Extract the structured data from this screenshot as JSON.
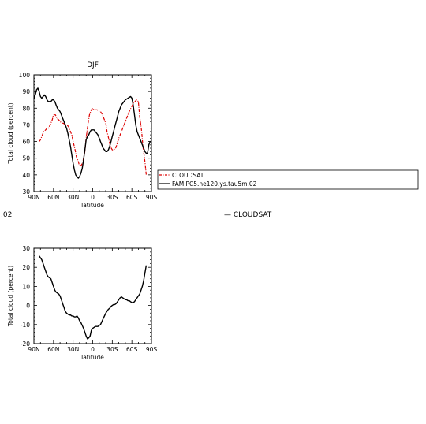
{
  "chart_data": [
    {
      "type": "line",
      "title": "DJF",
      "xlabel": "latitude",
      "ylabel": "Total cloud (percent)",
      "xlim": [
        -90,
        90
      ],
      "ylim": [
        30,
        100
      ],
      "xticks": [
        -90,
        -60,
        -30,
        0,
        30,
        60,
        90
      ],
      "xtick_labels": [
        "90N",
        "60N",
        "30N",
        "0",
        "30S",
        "60S",
        "90S"
      ],
      "yticks": [
        30,
        40,
        50,
        60,
        70,
        80,
        90,
        100
      ],
      "ytick_labels": [
        "30",
        "40",
        "50",
        "60",
        "70",
        "80",
        "90",
        "100"
      ],
      "legend": {
        "placement": "right",
        "entries": [
          "CLOUDSAT",
          "FAMIPC5.ne120.ys.tau5m.02"
        ]
      },
      "series": [
        {
          "name": "CLOUDSAT",
          "color": "#dd0000",
          "style": "dashed-dot",
          "x": [
            -82,
            -80,
            -78,
            -75,
            -72,
            -70,
            -68,
            -65,
            -62,
            -60,
            -57,
            -55,
            -52,
            -50,
            -47,
            -45,
            -42,
            -40,
            -37,
            -35,
            -32,
            -30,
            -27,
            -25,
            -22,
            -20,
            -17,
            -15,
            -12,
            -10,
            -7,
            -5,
            -2,
            0,
            2,
            5,
            7,
            10,
            12,
            15,
            17,
            20,
            22,
            25,
            27,
            30,
            32,
            35,
            37,
            40,
            42,
            45,
            47,
            50,
            52,
            55,
            57,
            60,
            62,
            65,
            67,
            70,
            72,
            75,
            77,
            80,
            82
          ],
          "y": [
            60,
            61,
            63,
            66,
            67,
            68,
            68,
            70,
            73,
            76,
            76,
            74,
            73,
            72,
            71,
            71,
            70,
            70,
            69,
            67,
            64,
            60,
            55,
            51,
            48,
            45,
            46,
            48,
            54,
            62,
            71,
            76,
            79,
            80,
            79,
            79,
            79,
            78,
            78,
            76,
            74,
            71,
            66,
            61,
            57,
            55,
            55,
            56,
            58,
            62,
            64,
            67,
            69,
            72,
            74,
            77,
            79,
            81,
            83,
            84,
            85,
            84,
            75,
            66,
            57,
            48,
            40
          ]
        },
        {
          "name": "FAMIPC5.ne120.ys.tau5m.02",
          "color": "#000000",
          "style": "solid",
          "x": [
            -90,
            -88,
            -86,
            -84,
            -82,
            -80,
            -78,
            -76,
            -74,
            -72,
            -70,
            -68,
            -66,
            -64,
            -62,
            -60,
            -58,
            -56,
            -54,
            -52,
            -50,
            -48,
            -46,
            -44,
            -42,
            -40,
            -38,
            -36,
            -34,
            -32,
            -30,
            -28,
            -26,
            -24,
            -22,
            -20,
            -18,
            -16,
            -14,
            -12,
            -10,
            -8,
            -6,
            -4,
            -2,
            0,
            2,
            4,
            6,
            8,
            10,
            12,
            14,
            16,
            18,
            20,
            22,
            24,
            26,
            28,
            30,
            32,
            34,
            36,
            38,
            40,
            42,
            44,
            46,
            48,
            50,
            52,
            54,
            56,
            58,
            60,
            62,
            64,
            66,
            68,
            70,
            72,
            74,
            76,
            78,
            80,
            82,
            84,
            86,
            88,
            90
          ],
          "y": [
            86,
            88,
            91,
            92,
            90,
            87,
            86,
            87,
            88,
            87,
            85,
            84,
            84,
            84,
            85,
            85,
            84,
            82,
            80,
            79,
            78,
            76,
            74,
            72,
            70,
            68,
            65,
            61,
            57,
            52,
            47,
            43,
            40,
            39,
            38,
            39,
            41,
            44,
            49,
            55,
            61,
            63,
            64,
            66,
            67,
            67,
            67,
            66,
            65,
            64,
            62,
            60,
            58,
            56,
            55,
            54,
            54,
            55,
            57,
            60,
            63,
            66,
            69,
            72,
            75,
            78,
            80,
            82,
            83,
            84,
            85,
            85.5,
            86,
            86.5,
            87,
            86,
            82,
            76,
            70,
            66,
            64,
            62,
            60,
            58,
            56,
            54,
            53,
            53,
            58,
            60,
            60
          ]
        }
      ]
    },
    {
      "type": "line",
      "title": "",
      "xlabel": "latitude",
      "ylabel": "Total cloud (percent)",
      "xlim": [
        -90,
        90
      ],
      "ylim": [
        -20,
        30
      ],
      "xticks": [
        -90,
        -60,
        -30,
        0,
        30,
        60,
        90
      ],
      "xtick_labels": [
        "90N",
        "60N",
        "30N",
        "0",
        "30S",
        "60S",
        "90S"
      ],
      "yticks": [
        -20,
        -10,
        0,
        10,
        20,
        30
      ],
      "ytick_labels": [
        "-20",
        "-10",
        "0",
        "10",
        "20",
        "30"
      ],
      "series": [
        {
          "color": "#000000",
          "style": "solid",
          "x": [
            -82,
            -80,
            -78,
            -76,
            -74,
            -72,
            -70,
            -68,
            -66,
            -64,
            -62,
            -60,
            -58,
            -56,
            -54,
            -52,
            -50,
            -48,
            -46,
            -44,
            -42,
            -40,
            -38,
            -36,
            -34,
            -32,
            -30,
            -28,
            -26,
            -24,
            -22,
            -20,
            -18,
            -16,
            -14,
            -12,
            -10,
            -8,
            -6,
            -4,
            -2,
            0,
            2,
            4,
            6,
            8,
            10,
            12,
            14,
            16,
            18,
            20,
            22,
            24,
            26,
            28,
            30,
            32,
            34,
            36,
            38,
            40,
            42,
            44,
            46,
            48,
            50,
            52,
            54,
            56,
            58,
            60,
            62,
            64,
            66,
            68,
            70,
            72,
            74,
            76,
            78,
            80,
            82
          ],
          "y": [
            26,
            25,
            24,
            22,
            20,
            18,
            16,
            15,
            14.5,
            14,
            12,
            10,
            8,
            7,
            6.5,
            6,
            5,
            3,
            1,
            -1,
            -3,
            -4,
            -4.5,
            -5,
            -5,
            -5.5,
            -5.5,
            -6,
            -6,
            -5.5,
            -6.5,
            -8,
            -9,
            -10.5,
            -12,
            -14,
            -16,
            -17.5,
            -17,
            -16,
            -13,
            -12,
            -11.5,
            -11,
            -11,
            -11,
            -10.5,
            -10,
            -8.5,
            -7,
            -5.5,
            -4,
            -3,
            -2,
            -1.5,
            -0.5,
            0,
            0.5,
            0.5,
            1,
            2,
            3,
            4,
            4.5,
            4,
            3.5,
            3,
            3,
            2.5,
            2.5,
            2,
            1.5,
            1.5,
            2,
            3,
            4,
            5,
            6,
            8,
            10,
            13,
            17,
            21
          ]
        }
      ]
    }
  ],
  "extra": {
    "right_legend_text": "— CLOUDSAT",
    "left_clipped_text": ".02"
  }
}
